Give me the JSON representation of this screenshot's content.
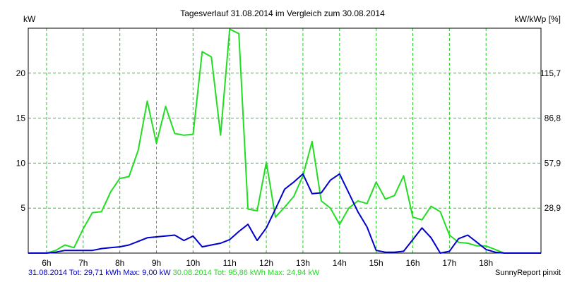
{
  "chart_data": {
    "type": "line",
    "title": "Tagesverlauf 31.08.2014 im Vergleich zum 30.08.2014",
    "ylabel": "kW",
    "y2label": "kW/kWp [%]",
    "ylim": [
      0,
      25
    ],
    "xlim": [
      5.5,
      19.5
    ],
    "grid": true,
    "y_ticks": [
      5,
      10,
      15,
      20
    ],
    "y2_ticks": [
      {
        "y": 5,
        "label": "28,9"
      },
      {
        "y": 10,
        "label": "57,9"
      },
      {
        "y": 15,
        "label": "86,8"
      },
      {
        "y": 20,
        "label": "115,7"
      }
    ],
    "x_ticks": [
      {
        "x": 6,
        "label": "6h"
      },
      {
        "x": 7,
        "label": "7h"
      },
      {
        "x": 8,
        "label": "8h"
      },
      {
        "x": 9,
        "label": "9h"
      },
      {
        "x": 10,
        "label": "10h"
      },
      {
        "x": 11,
        "label": "11h"
      },
      {
        "x": 12,
        "label": "12h"
      },
      {
        "x": 13,
        "label": "13h"
      },
      {
        "x": 14,
        "label": "14h"
      },
      {
        "x": 15,
        "label": "15h"
      },
      {
        "x": 16,
        "label": "16h"
      },
      {
        "x": 17,
        "label": "17h"
      },
      {
        "x": 18,
        "label": "18h"
      }
    ],
    "series": [
      {
        "name": "31.08.2014",
        "color": "#0000cc",
        "points": [
          [
            5.5,
            0
          ],
          [
            6,
            0
          ],
          [
            6.25,
            0.1
          ],
          [
            6.5,
            0.3
          ],
          [
            6.75,
            0.3
          ],
          [
            7,
            0.3
          ],
          [
            7.25,
            0.3
          ],
          [
            7.5,
            0.5
          ],
          [
            7.75,
            0.6
          ],
          [
            8,
            0.7
          ],
          [
            8.25,
            0.9
          ],
          [
            8.5,
            1.3
          ],
          [
            8.75,
            1.7
          ],
          [
            9,
            1.8
          ],
          [
            9.25,
            1.9
          ],
          [
            9.5,
            2.0
          ],
          [
            9.75,
            1.4
          ],
          [
            10,
            1.9
          ],
          [
            10.25,
            0.7
          ],
          [
            10.5,
            0.9
          ],
          [
            10.75,
            1.1
          ],
          [
            11,
            1.5
          ],
          [
            11.25,
            2.4
          ],
          [
            11.5,
            3.2
          ],
          [
            11.75,
            1.4
          ],
          [
            12,
            2.8
          ],
          [
            12.25,
            4.9
          ],
          [
            12.5,
            7.1
          ],
          [
            12.75,
            7.9
          ],
          [
            13,
            8.8
          ],
          [
            13.25,
            6.6
          ],
          [
            13.5,
            6.7
          ],
          [
            13.75,
            8.1
          ],
          [
            14,
            8.8
          ],
          [
            14.25,
            6.7
          ],
          [
            14.5,
            4.6
          ],
          [
            14.75,
            2.9
          ],
          [
            15,
            0.3
          ],
          [
            15.25,
            0.1
          ],
          [
            15.5,
            0.1
          ],
          [
            15.75,
            0.2
          ],
          [
            16,
            1.5
          ],
          [
            16.25,
            2.8
          ],
          [
            16.5,
            1.7
          ],
          [
            16.75,
            0
          ],
          [
            17,
            0.2
          ],
          [
            17.25,
            1.6
          ],
          [
            17.5,
            2.0
          ],
          [
            17.75,
            1.2
          ],
          [
            18,
            0.4
          ],
          [
            18.25,
            0.1
          ],
          [
            18.5,
            0
          ],
          [
            19.5,
            0
          ]
        ]
      },
      {
        "name": "30.08.2014",
        "color": "#22dd22",
        "points": [
          [
            5.5,
            0
          ],
          [
            6,
            0
          ],
          [
            6.25,
            0.3
          ],
          [
            6.5,
            0.9
          ],
          [
            6.75,
            0.6
          ],
          [
            7,
            2.7
          ],
          [
            7.25,
            4.5
          ],
          [
            7.5,
            4.6
          ],
          [
            7.75,
            6.8
          ],
          [
            8,
            8.3
          ],
          [
            8.25,
            8.5
          ],
          [
            8.5,
            11.4
          ],
          [
            8.75,
            16.9
          ],
          [
            9,
            12.2
          ],
          [
            9.25,
            16.3
          ],
          [
            9.5,
            13.3
          ],
          [
            9.75,
            13.1
          ],
          [
            10,
            13.2
          ],
          [
            10.25,
            22.4
          ],
          [
            10.5,
            21.8
          ],
          [
            10.75,
            13.1
          ],
          [
            11,
            24.9
          ],
          [
            11.25,
            24.4
          ],
          [
            11.5,
            4.9
          ],
          [
            11.75,
            4.7
          ],
          [
            12,
            10.1
          ],
          [
            12.25,
            4.0
          ],
          [
            12.5,
            5.1
          ],
          [
            12.75,
            6.3
          ],
          [
            13,
            8.6
          ],
          [
            13.25,
            12.4
          ],
          [
            13.5,
            5.8
          ],
          [
            13.75,
            5.0
          ],
          [
            14,
            3.2
          ],
          [
            14.25,
            5.0
          ],
          [
            14.5,
            5.8
          ],
          [
            14.75,
            5.5
          ],
          [
            15,
            7.9
          ],
          [
            15.25,
            6.0
          ],
          [
            15.5,
            6.4
          ],
          [
            15.75,
            8.6
          ],
          [
            16,
            4.0
          ],
          [
            16.25,
            3.7
          ],
          [
            16.5,
            5.2
          ],
          [
            16.75,
            4.6
          ],
          [
            17,
            2.0
          ],
          [
            17.25,
            1.2
          ],
          [
            17.5,
            1.1
          ],
          [
            17.75,
            0.8
          ],
          [
            18,
            0.8
          ],
          [
            18.25,
            0.4
          ],
          [
            18.5,
            0
          ],
          [
            19.5,
            0
          ]
        ]
      }
    ]
  },
  "footer": {
    "series1_summary": "31.08.2014 Tot: 29,71 kWh Max: 9,00 kW",
    "series2_summary": "30.08.2014 Tot: 95,86 kWh Max: 24,94 kW",
    "brand": "SunnyReport pinxit"
  }
}
